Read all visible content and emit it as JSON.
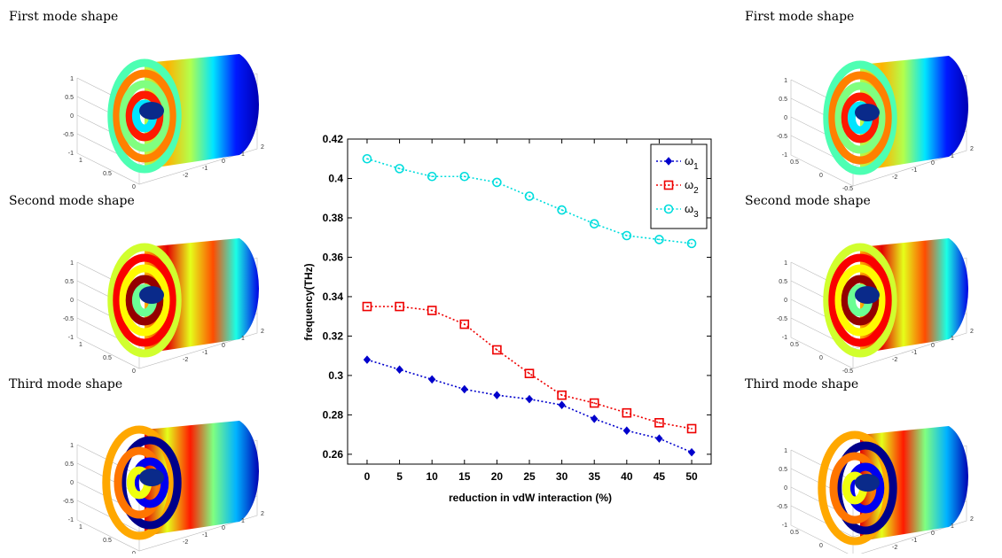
{
  "left_panel": {
    "mode_labels": [
      "First mode shape",
      "Second mode shape",
      "Third mode shape"
    ],
    "z_ticks": [
      "1",
      "0.5",
      "0",
      "-0.5",
      "-1"
    ],
    "x_ticks": [
      "1",
      "0.5",
      "0",
      "-0.5"
    ],
    "y_ticks": [
      "2",
      "1",
      "0",
      "-1",
      "-2"
    ]
  },
  "right_panel": {
    "mode_labels": [
      "First mode shape",
      "Second mode shape",
      "Third mode shape"
    ],
    "z_ticks": [
      "1",
      "0.5",
      "0",
      "-0.5",
      "-1"
    ],
    "x_ticks": [
      "0.5",
      "0",
      "-0.5"
    ],
    "y_ticks": [
      "2",
      "1",
      "0",
      "-1",
      "-2"
    ]
  },
  "chart_data": {
    "type": "line",
    "xlabel": "reduction in vdW interaction (%)",
    "ylabel": "frequency(THz)",
    "x": [
      0,
      5,
      10,
      15,
      20,
      25,
      30,
      35,
      40,
      45,
      50
    ],
    "xlim": [
      -3,
      53
    ],
    "ylim": [
      0.255,
      0.42
    ],
    "x_ticks": [
      "0",
      "5",
      "10",
      "15",
      "20",
      "25",
      "30",
      "35",
      "40",
      "45",
      "50"
    ],
    "y_ticks": [
      "0.26",
      "0.28",
      "0.3",
      "0.32",
      "0.34",
      "0.36",
      "0.38",
      "0.4",
      "0.42"
    ],
    "y_tick_values": [
      0.26,
      0.28,
      0.3,
      0.32,
      0.34,
      0.36,
      0.38,
      0.4,
      0.42
    ],
    "legend_position": "top-right",
    "series": [
      {
        "name": "ω",
        "sub": "1",
        "color": "#0000cc",
        "marker": "diamond",
        "values": [
          0.308,
          0.303,
          0.298,
          0.293,
          0.29,
          0.288,
          0.285,
          0.278,
          0.272,
          0.268,
          0.261
        ]
      },
      {
        "name": "ω",
        "sub": "2",
        "color": "#ee0000",
        "marker": "square",
        "values": [
          0.335,
          0.335,
          0.333,
          0.326,
          0.313,
          0.301,
          0.29,
          0.286,
          0.281,
          0.276,
          0.273
        ]
      },
      {
        "name": "ω",
        "sub": "3",
        "color": "#00dddd",
        "marker": "circle",
        "values": [
          0.41,
          0.405,
          0.401,
          0.401,
          0.398,
          0.391,
          0.384,
          0.377,
          0.371,
          0.369,
          0.367
        ]
      }
    ]
  }
}
